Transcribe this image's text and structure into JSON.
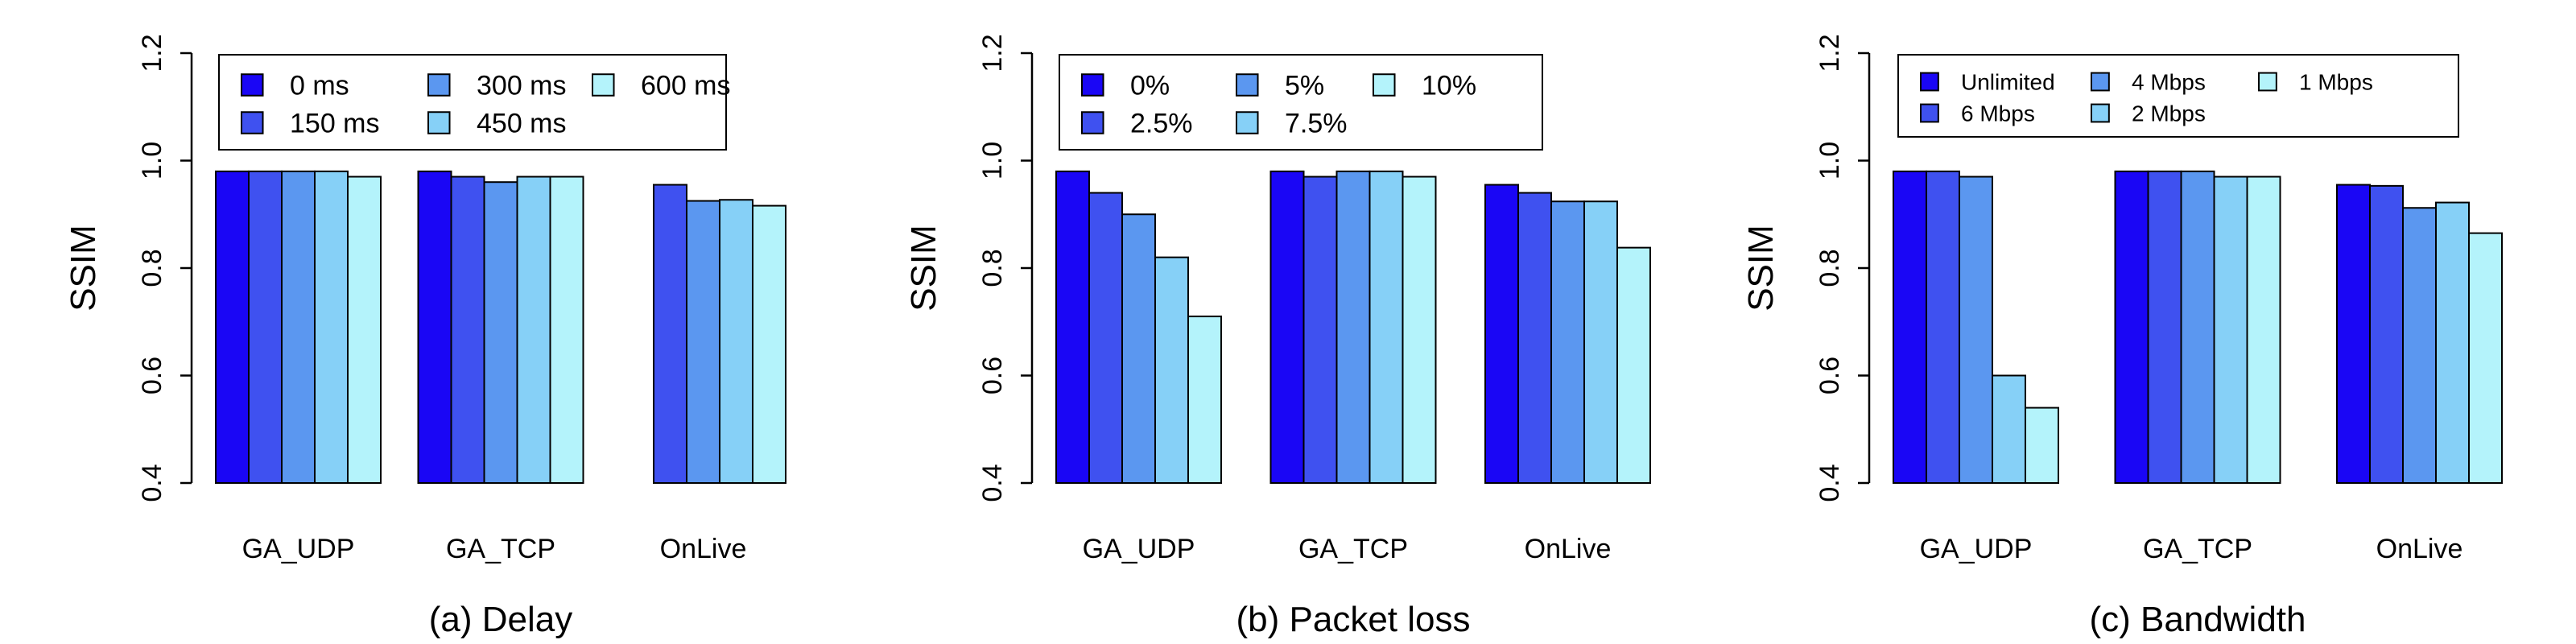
{
  "colors": {
    "c1": "#1a06f5",
    "c2": "#3f51f0",
    "c3": "#5b97f0",
    "c4": "#86d0f7",
    "c5": "#b4f3fb",
    "axis": "#000000"
  },
  "chart_data": [
    {
      "type": "bar",
      "caption": "(a) Delay",
      "ylabel": "SSIM",
      "ylim": [
        0.4,
        1.2
      ],
      "yticks": [
        "0.4",
        "0.6",
        "0.8",
        "1.0",
        "1.2"
      ],
      "categories": [
        "GA_UDP",
        "GA_TCP",
        "OnLive"
      ],
      "legend_position": "top-left",
      "series": [
        {
          "name": "0 ms",
          "values": [
            0.98,
            0.98,
            null
          ]
        },
        {
          "name": "150 ms",
          "values": [
            0.98,
            0.97,
            0.955
          ]
        },
        {
          "name": "300 ms",
          "values": [
            0.98,
            0.96,
            0.925
          ]
        },
        {
          "name": "450 ms",
          "values": [
            0.98,
            0.97,
            0.927
          ]
        },
        {
          "name": "600 ms",
          "values": [
            0.97,
            0.97,
            0.916
          ]
        }
      ]
    },
    {
      "type": "bar",
      "caption": "(b) Packet loss",
      "ylabel": "SSIM",
      "ylim": [
        0.4,
        1.2
      ],
      "yticks": [
        "0.4",
        "0.6",
        "0.8",
        "1.0",
        "1.2"
      ],
      "categories": [
        "GA_UDP",
        "GA_TCP",
        "OnLive"
      ],
      "legend_position": "top-left",
      "series": [
        {
          "name": "0%",
          "values": [
            0.98,
            0.98,
            0.955
          ]
        },
        {
          "name": "2.5%",
          "values": [
            0.94,
            0.97,
            0.94
          ]
        },
        {
          "name": "5%",
          "values": [
            0.9,
            0.98,
            0.924
          ]
        },
        {
          "name": "7.5%",
          "values": [
            0.82,
            0.98,
            0.924
          ]
        },
        {
          "name": "10%",
          "values": [
            0.71,
            0.97,
            0.838
          ]
        }
      ]
    },
    {
      "type": "bar",
      "caption": "(c) Bandwidth",
      "ylabel": "SSIM",
      "ylim": [
        0.4,
        1.2
      ],
      "yticks": [
        "0.4",
        "0.6",
        "0.8",
        "1.0",
        "1.2"
      ],
      "categories": [
        "GA_UDP",
        "GA_TCP",
        "OnLive"
      ],
      "legend_position": "top-left",
      "series": [
        {
          "name": "Unlimited",
          "values": [
            0.98,
            0.98,
            0.955
          ]
        },
        {
          "name": "6 Mbps",
          "values": [
            0.98,
            0.98,
            0.953
          ]
        },
        {
          "name": "4 Mbps",
          "values": [
            0.97,
            0.98,
            0.912
          ]
        },
        {
          "name": "2 Mbps",
          "values": [
            0.6,
            0.97,
            0.922
          ]
        },
        {
          "name": "1 Mbps",
          "values": [
            0.54,
            0.97,
            0.865
          ]
        }
      ]
    }
  ]
}
